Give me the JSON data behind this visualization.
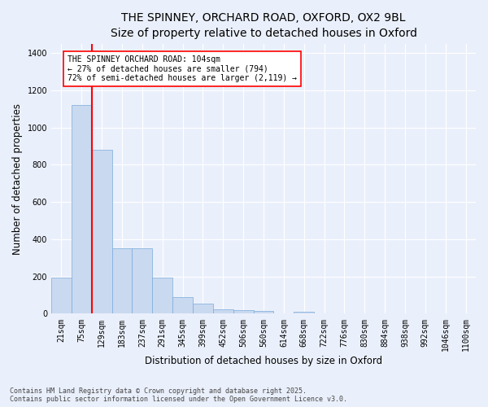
{
  "title_line1": "THE SPINNEY, ORCHARD ROAD, OXFORD, OX2 9BL",
  "title_line2": "Size of property relative to detached houses in Oxford",
  "xlabel": "Distribution of detached houses by size in Oxford",
  "ylabel": "Number of detached properties",
  "categories": [
    "21sqm",
    "75sqm",
    "129sqm",
    "183sqm",
    "237sqm",
    "291sqm",
    "345sqm",
    "399sqm",
    "452sqm",
    "506sqm",
    "560sqm",
    "614sqm",
    "668sqm",
    "722sqm",
    "776sqm",
    "830sqm",
    "884sqm",
    "938sqm",
    "992sqm",
    "1046sqm",
    "1100sqm"
  ],
  "values": [
    195,
    1120,
    880,
    350,
    350,
    195,
    90,
    55,
    25,
    20,
    15,
    0,
    10,
    0,
    0,
    0,
    0,
    0,
    0,
    0,
    0
  ],
  "bar_color": "#c9d9f0",
  "bar_edge_color": "#7aabdb",
  "bar_width": 1.0,
  "vline_color": "red",
  "vline_x": 1.5,
  "annotation_text": "THE SPINNEY ORCHARD ROAD: 104sqm\n← 27% of detached houses are smaller (794)\n72% of semi-detached houses are larger (2,119) →",
  "annotation_box_facecolor": "white",
  "annotation_box_edgecolor": "red",
  "ylim": [
    0,
    1450
  ],
  "yticks": [
    0,
    200,
    400,
    600,
    800,
    1000,
    1200,
    1400
  ],
  "bg_color": "#eaf0fb",
  "grid_color": "white",
  "footer_line1": "Contains HM Land Registry data © Crown copyright and database right 2025.",
  "footer_line2": "Contains public sector information licensed under the Open Government Licence v3.0.",
  "title_fontsize": 10,
  "subtitle_fontsize": 9,
  "axis_label_fontsize": 8.5,
  "tick_fontsize": 7,
  "annotation_fontsize": 7,
  "footer_fontsize": 6
}
